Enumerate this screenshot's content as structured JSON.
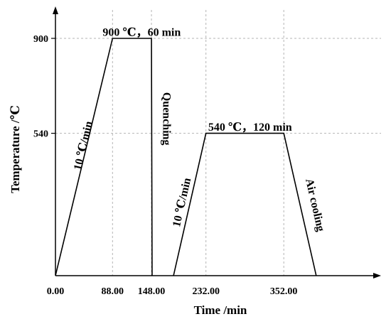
{
  "chart_data": {
    "type": "line",
    "title": "",
    "xlabel": "Time /min",
    "ylabel": "Temperature /℃",
    "x_ticks": [
      {
        "value": 0,
        "label": "0.00"
      },
      {
        "value": 88,
        "label": "88.00"
      },
      {
        "value": 148,
        "label": "148.00"
      },
      {
        "value": 232,
        "label": "232.00"
      },
      {
        "value": 352,
        "label": "352.00"
      }
    ],
    "y_ticks": [
      {
        "value": 540,
        "label": "540"
      },
      {
        "value": 900,
        "label": "900"
      }
    ],
    "grid": true,
    "series": [
      {
        "x": [
          0,
          88,
          148,
          149
        ],
        "y": [
          0,
          900,
          900,
          0
        ]
      },
      {
        "x": [
          182,
          232,
          352,
          402
        ],
        "y": [
          0,
          540,
          540,
          0
        ]
      }
    ],
    "annotations": [
      {
        "text": "900 ℃，60 min",
        "x": 133,
        "y": 910
      },
      {
        "text": "540 ℃，120 min",
        "x": 300,
        "y": 550
      },
      {
        "text": "10 ℃/min",
        "x": 48,
        "y": 490,
        "role": "rate-1"
      },
      {
        "text": "Quenching",
        "x": 166,
        "y": 595,
        "role": "quench"
      },
      {
        "text": "10 ℃/min",
        "x": 200,
        "y": 275,
        "role": "rate-2"
      },
      {
        "text": "Air cooling",
        "x": 395,
        "y": 265,
        "role": "air"
      }
    ]
  }
}
